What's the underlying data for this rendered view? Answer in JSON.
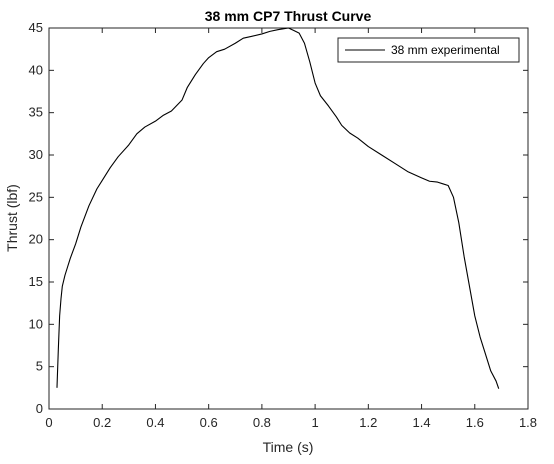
{
  "chart_data": {
    "type": "line",
    "title": "38 mm CP7 Thrust Curve",
    "xlabel": "Time (s)",
    "ylabel": "Thrust (lbf)",
    "xlim": [
      0,
      1.8
    ],
    "ylim": [
      0,
      45
    ],
    "xticks": [
      0,
      0.2,
      0.4,
      0.6,
      0.8,
      1,
      1.2,
      1.4,
      1.6,
      1.8
    ],
    "xtick_labels": [
      "0",
      "0.2",
      "0.4",
      "0.6",
      "0.8",
      "1",
      "1.2",
      "1.4",
      "1.6",
      "1.8"
    ],
    "yticks": [
      0,
      5,
      10,
      15,
      20,
      25,
      30,
      35,
      40,
      45
    ],
    "ytick_labels": [
      "0",
      "5",
      "10",
      "15",
      "20",
      "25",
      "30",
      "35",
      "40",
      "45"
    ],
    "grid": false,
    "legend_position": "top-right",
    "series": [
      {
        "name": "38 mm experimental",
        "color": "#000000",
        "x": [
          0.03,
          0.035,
          0.04,
          0.045,
          0.05,
          0.06,
          0.07,
          0.08,
          0.1,
          0.12,
          0.15,
          0.18,
          0.2,
          0.23,
          0.26,
          0.3,
          0.33,
          0.36,
          0.4,
          0.43,
          0.46,
          0.5,
          0.52,
          0.55,
          0.58,
          0.6,
          0.63,
          0.66,
          0.7,
          0.73,
          0.76,
          0.8,
          0.83,
          0.86,
          0.88,
          0.9,
          0.92,
          0.94,
          0.96,
          0.98,
          1.0,
          1.02,
          1.05,
          1.08,
          1.1,
          1.13,
          1.16,
          1.2,
          1.25,
          1.3,
          1.35,
          1.4,
          1.43,
          1.46,
          1.48,
          1.5,
          1.52,
          1.54,
          1.56,
          1.58,
          1.6,
          1.62,
          1.64,
          1.66,
          1.68,
          1.69
        ],
        "y": [
          2.5,
          7,
          11,
          13,
          14.5,
          15.8,
          16.8,
          17.8,
          19.5,
          21.5,
          24,
          26,
          27,
          28.5,
          29.8,
          31.2,
          32.5,
          33.3,
          34,
          34.7,
          35.2,
          36.5,
          38,
          39.5,
          40.8,
          41.5,
          42.2,
          42.5,
          43.2,
          43.8,
          44,
          44.3,
          44.6,
          44.8,
          44.9,
          45,
          44.7,
          44.4,
          43.2,
          41,
          38.5,
          37,
          35.8,
          34.5,
          33.5,
          32.6,
          32,
          31,
          30,
          29,
          28,
          27.3,
          26.9,
          26.8,
          26.6,
          26.4,
          25,
          22,
          18,
          14.5,
          11,
          8.5,
          6.5,
          4.5,
          3.3,
          2.4
        ]
      }
    ]
  }
}
